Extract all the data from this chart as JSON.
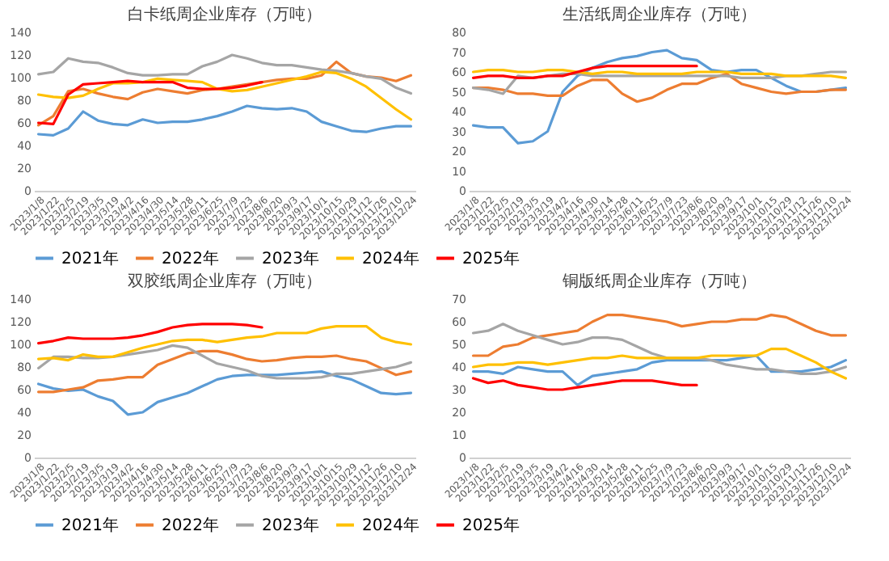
{
  "chart_data": [
    {
      "type": "line",
      "title": "白卡纸周企业库存（万吨）",
      "legend": "bottom",
      "line_style": "solid",
      "marker": "none",
      "categories": [
        "2023/1/8",
        "2023/1/22",
        "2023/2/5",
        "2023/2/19",
        "2023/3/5",
        "2023/3/19",
        "2023/4/2",
        "2023/4/16",
        "2023/4/30",
        "2023/5/14",
        "2023/5/28",
        "2023/6/11",
        "2023/6/25",
        "2023/7/9",
        "2023/7/23",
        "2023/8/6",
        "2023/8/20",
        "2023/9/3",
        "2023/9/17",
        "2023/10/1",
        "2023/10/15",
        "2023/10/29",
        "2023/11/12",
        "2023/11/26",
        "2023/12/10",
        "2023/12/24"
      ],
      "ylim": [
        0,
        140
      ],
      "yticks": [
        0,
        20,
        40,
        60,
        80,
        100,
        120,
        140
      ],
      "series": [
        {
          "name": "2021年",
          "color": "#5b9bd5",
          "values": [
            50,
            49,
            55,
            70,
            62,
            59,
            58,
            63,
            60,
            61,
            61,
            63,
            66,
            70,
            75,
            73,
            72,
            73,
            70,
            61,
            57,
            53,
            52,
            55,
            57,
            57
          ]
        },
        {
          "name": "2022年",
          "color": "#ed7d31",
          "values": [
            58,
            66,
            88,
            90,
            86,
            83,
            81,
            87,
            90,
            88,
            86,
            89,
            90,
            92,
            94,
            96,
            98,
            99,
            99,
            102,
            114,
            104,
            101,
            100,
            97,
            102
          ]
        },
        {
          "name": "2023年",
          "color": "#a5a5a5",
          "values": [
            103,
            105,
            117,
            114,
            113,
            109,
            104,
            102,
            102,
            103,
            103,
            110,
            114,
            120,
            117,
            113,
            111,
            111,
            109,
            107,
            106,
            104,
            101,
            99,
            91,
            86
          ]
        },
        {
          "name": "2024年",
          "color": "#ffc000",
          "values": [
            85,
            83,
            82,
            84,
            90,
            95,
            95,
            96,
            99,
            98,
            97,
            96,
            90,
            88,
            89,
            92,
            95,
            98,
            101,
            105,
            104,
            99,
            92,
            82,
            72,
            63
          ]
        },
        {
          "name": "2025年",
          "color": "#ff0000",
          "values": [
            60,
            59,
            85,
            94,
            95,
            96,
            97,
            96,
            96,
            96,
            91,
            90,
            90,
            91,
            93,
            96,
            null,
            null,
            null,
            null,
            null,
            null,
            null,
            null,
            null,
            null
          ]
        }
      ]
    },
    {
      "type": "line",
      "title": "生活纸周企业库存（万吨）",
      "legend": "bottom",
      "line_style": "solid",
      "marker": "none",
      "categories": [
        "2023/1/8",
        "2023/1/22",
        "2023/2/5",
        "2023/2/19",
        "2023/3/5",
        "2023/3/19",
        "2023/4/2",
        "2023/4/16",
        "2023/4/30",
        "2023/5/14",
        "2023/5/28",
        "2023/6/11",
        "2023/6/25",
        "2023/7/9",
        "2023/7/23",
        "2023/8/6",
        "2023/8/20",
        "2023/9/3",
        "2023/9/17",
        "2023/10/1",
        "2023/10/15",
        "2023/10/29",
        "2023/11/12",
        "2023/11/26",
        "2023/12/10",
        "2023/12/24"
      ],
      "ylim": [
        0,
        80
      ],
      "yticks": [
        0,
        10,
        20,
        30,
        40,
        50,
        60,
        70,
        80
      ],
      "series": [
        {
          "name": "2021年",
          "color": "#5b9bd5",
          "values": [
            33,
            32,
            32,
            24,
            25,
            30,
            50,
            58,
            62,
            65,
            67,
            68,
            70,
            71,
            67,
            66,
            61,
            60,
            61,
            61,
            57,
            53,
            50,
            50,
            51,
            52
          ]
        },
        {
          "name": "2022年",
          "color": "#ed7d31",
          "values": [
            52,
            52,
            51,
            49,
            49,
            48,
            48,
            53,
            56,
            56,
            49,
            45,
            47,
            51,
            54,
            54,
            57,
            59,
            54,
            52,
            50,
            49,
            50,
            50,
            51,
            51
          ]
        },
        {
          "name": "2023年",
          "color": "#a5a5a5",
          "values": [
            52,
            51,
            49,
            58,
            57,
            58,
            59,
            59,
            58,
            58,
            58,
            58,
            58,
            58,
            58,
            58,
            58,
            58,
            57,
            57,
            57,
            58,
            58,
            59,
            60,
            60
          ]
        },
        {
          "name": "2024年",
          "color": "#ffc000",
          "values": [
            60,
            61,
            61,
            60,
            60,
            61,
            61,
            60,
            59,
            60,
            60,
            59,
            59,
            59,
            59,
            60,
            60,
            60,
            59,
            59,
            59,
            58,
            58,
            58,
            58,
            57
          ]
        },
        {
          "name": "2025年",
          "color": "#ff0000",
          "values": [
            57,
            58,
            58,
            57,
            57,
            58,
            58,
            60,
            62,
            63,
            63,
            63,
            63,
            63,
            63,
            63,
            null,
            null,
            null,
            null,
            null,
            null,
            null,
            null,
            null,
            null
          ]
        }
      ]
    },
    {
      "type": "line",
      "title": "双胶纸周企业库存（万吨）",
      "legend": "bottom",
      "line_style": "solid",
      "marker": "none",
      "categories": [
        "2023/1/8",
        "2023/1/22",
        "2023/2/5",
        "2023/2/19",
        "2023/3/5",
        "2023/3/19",
        "2023/4/2",
        "2023/4/16",
        "2023/4/30",
        "2023/5/14",
        "2023/5/28",
        "2023/6/11",
        "2023/6/25",
        "2023/7/9",
        "2023/7/23",
        "2023/8/6",
        "2023/8/20",
        "2023/9/3",
        "2023/9/17",
        "2023/10/1",
        "2023/10/15",
        "2023/10/29",
        "2023/11/12",
        "2023/11/26",
        "2023/12/10",
        "2023/12/24"
      ],
      "ylim": [
        0,
        140
      ],
      "yticks": [
        0,
        20,
        40,
        60,
        80,
        100,
        120,
        140
      ],
      "series": [
        {
          "name": "2021年",
          "color": "#5b9bd5",
          "values": [
            65,
            61,
            59,
            60,
            54,
            50,
            38,
            40,
            49,
            53,
            57,
            63,
            69,
            72,
            73,
            73,
            73,
            74,
            75,
            76,
            72,
            69,
            63,
            57,
            56,
            57
          ]
        },
        {
          "name": "2022年",
          "color": "#ed7d31",
          "values": [
            58,
            58,
            60,
            62,
            68,
            69,
            71,
            71,
            82,
            87,
            92,
            94,
            94,
            91,
            87,
            85,
            86,
            88,
            89,
            89,
            90,
            87,
            85,
            79,
            73,
            76
          ]
        },
        {
          "name": "2023年",
          "color": "#a5a5a5",
          "values": [
            79,
            89,
            89,
            88,
            88,
            89,
            91,
            93,
            95,
            99,
            97,
            90,
            83,
            80,
            77,
            72,
            70,
            70,
            70,
            71,
            74,
            74,
            76,
            78,
            80,
            84
          ]
        },
        {
          "name": "2024年",
          "color": "#ffc000",
          "values": [
            87,
            88,
            86,
            91,
            89,
            89,
            93,
            97,
            100,
            103,
            104,
            104,
            102,
            104,
            106,
            107,
            110,
            110,
            110,
            114,
            116,
            116,
            116,
            106,
            102,
            100
          ]
        },
        {
          "name": "2025年",
          "color": "#ff0000",
          "values": [
            101,
            103,
            106,
            105,
            105,
            105,
            106,
            108,
            111,
            115,
            117,
            118,
            118,
            118,
            117,
            115,
            null,
            null,
            null,
            null,
            null,
            null,
            null,
            null,
            null,
            null
          ]
        }
      ]
    },
    {
      "type": "line",
      "title": "铜版纸周企业库存（万吨）",
      "legend": "bottom",
      "line_style": "solid",
      "marker": "none",
      "categories": [
        "2023/1/8",
        "2023/1/22",
        "2023/2/5",
        "2023/2/19",
        "2023/3/5",
        "2023/3/19",
        "2023/4/2",
        "2023/4/16",
        "2023/4/30",
        "2023/5/14",
        "2023/5/28",
        "2023/6/11",
        "2023/6/25",
        "2023/7/9",
        "2023/7/23",
        "2023/8/6",
        "2023/8/20",
        "2023/9/3",
        "2023/9/17",
        "2023/10/1",
        "2023/10/15",
        "2023/10/29",
        "2023/11/12",
        "2023/11/26",
        "2023/12/10",
        "2023/12/24"
      ],
      "ylim": [
        0,
        70
      ],
      "yticks": [
        0,
        10,
        20,
        30,
        40,
        50,
        60,
        70
      ],
      "series": [
        {
          "name": "2021年",
          "color": "#5b9bd5",
          "values": [
            38,
            38,
            37,
            40,
            39,
            38,
            38,
            32,
            36,
            37,
            38,
            39,
            42,
            43,
            43,
            43,
            43,
            43,
            44,
            45,
            38,
            38,
            38,
            39,
            40,
            43
          ]
        },
        {
          "name": "2022年",
          "color": "#ed7d31",
          "values": [
            45,
            45,
            49,
            50,
            53,
            54,
            55,
            56,
            60,
            63,
            63,
            62,
            61,
            60,
            58,
            59,
            60,
            60,
            61,
            61,
            63,
            62,
            59,
            56,
            54,
            54
          ]
        },
        {
          "name": "2023年",
          "color": "#a5a5a5",
          "values": [
            55,
            56,
            59,
            56,
            54,
            52,
            50,
            51,
            53,
            53,
            52,
            49,
            46,
            44,
            44,
            44,
            43,
            41,
            40,
            39,
            39,
            38,
            37,
            37,
            38,
            40
          ]
        },
        {
          "name": "2024年",
          "color": "#ffc000",
          "values": [
            40,
            41,
            41,
            42,
            42,
            41,
            42,
            43,
            44,
            44,
            45,
            44,
            44,
            44,
            44,
            44,
            45,
            45,
            45,
            45,
            48,
            48,
            45,
            42,
            38,
            35
          ]
        },
        {
          "name": "2025年",
          "color": "#ff0000",
          "values": [
            35,
            33,
            34,
            32,
            31,
            30,
            30,
            31,
            32,
            33,
            34,
            34,
            34,
            33,
            32,
            32,
            null,
            null,
            null,
            null,
            null,
            null,
            null,
            null,
            null,
            null
          ]
        }
      ]
    }
  ]
}
